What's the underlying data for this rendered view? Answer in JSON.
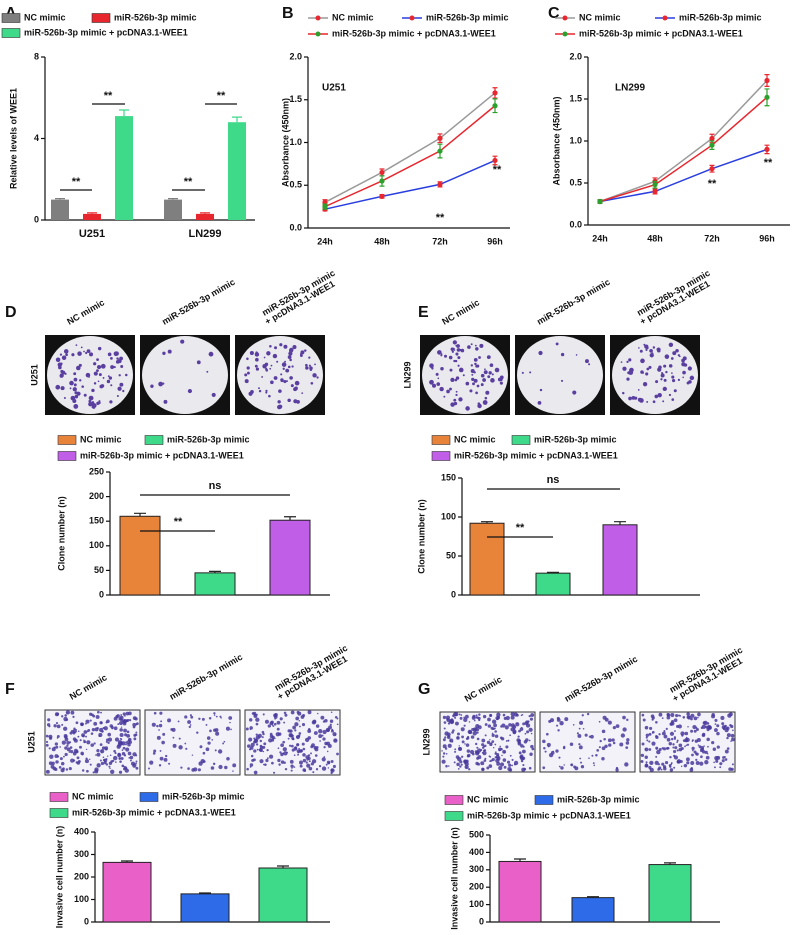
{
  "chart_data": [
    {
      "panel": "A",
      "type": "bar",
      "y_label": "Relative levels of WEE1",
      "categories": [
        "U251",
        "LN299"
      ],
      "series": [
        {
          "name": "NC mimic",
          "color": "#7f7f7f",
          "values": [
            1,
            1
          ],
          "errors": [
            0.05,
            0.05
          ]
        },
        {
          "name": "miR-526b-3p mimic",
          "color": "#e8262e",
          "values": [
            0.3,
            0.3
          ],
          "errors": [
            0.05,
            0.05
          ]
        },
        {
          "name": "miR-526b-3p mimic + pcDNA3.1-WEE1",
          "color": "#3fd98a",
          "values": [
            5.1,
            4.8
          ],
          "errors": [
            0.3,
            0.25
          ]
        }
      ],
      "ylim": [
        0,
        8
      ],
      "yticks": [
        0,
        4,
        8
      ],
      "annotations": [
        "**",
        "**",
        "**",
        "**"
      ]
    },
    {
      "panel": "B",
      "type": "line",
      "y_label": "Absorbance (450nm)",
      "label": "U251",
      "categories": [
        "24h",
        "48h",
        "72h",
        "96h"
      ],
      "series": [
        {
          "name": "NC mimic",
          "color": "#9a9a9a",
          "marker_color": "#e8262e",
          "values": [
            0.3,
            0.65,
            1.05,
            1.58
          ],
          "errors": [
            0.03,
            0.04,
            0.05,
            0.06
          ]
        },
        {
          "name": "miR-526b-3p mimic",
          "color": "#2a3fe0",
          "marker_color": "#e8262e",
          "values": [
            0.22,
            0.37,
            0.51,
            0.79
          ],
          "errors": [
            0.02,
            0.02,
            0.03,
            0.05
          ]
        },
        {
          "name": "miR-526b-3p mimic + pcDNA3.1-WEE1",
          "color": "#e8262e",
          "marker_color": "#2ca02c",
          "values": [
            0.25,
            0.55,
            0.9,
            1.43
          ],
          "errors": [
            0.03,
            0.06,
            0.08,
            0.08
          ]
        }
      ],
      "ylim": [
        0,
        2
      ],
      "yticks": [
        {
          "value": 0,
          "label": "0.0"
        },
        0.5,
        {
          "value": 1,
          "label": "1.0"
        },
        1.5,
        {
          "value": 2,
          "label": "2.0"
        }
      ],
      "annotations": [
        "**",
        "**"
      ]
    },
    {
      "panel": "C",
      "type": "line",
      "y_label": "Absorbance (450nm)",
      "label": "LN299",
      "categories": [
        "24h",
        "48h",
        "72h",
        "96h"
      ],
      "series": [
        {
          "name": "NC mimic",
          "color": "#9a9a9a",
          "marker_color": "#e8262e",
          "values": [
            0.28,
            0.52,
            1.03,
            1.72
          ],
          "errors": [
            0.02,
            0.04,
            0.05,
            0.07
          ]
        },
        {
          "name": "miR-526b-3p mimic",
          "color": "#2a3fe0",
          "marker_color": "#e8262e",
          "values": [
            0.28,
            0.4,
            0.67,
            0.9
          ],
          "errors": [
            0.02,
            0.03,
            0.04,
            0.05
          ]
        },
        {
          "name": "miR-526b-3p mimic + pcDNA3.1-WEE1",
          "color": "#e8262e",
          "marker_color": "#2ca02c",
          "values": [
            0.28,
            0.48,
            0.95,
            1.52
          ],
          "errors": [
            0.02,
            0.04,
            0.05,
            0.1
          ]
        }
      ],
      "ylim": [
        0,
        2
      ],
      "yticks": [
        {
          "value": 0,
          "label": "0.0"
        },
        0.5,
        {
          "value": 1,
          "label": "1.0"
        },
        1.5,
        {
          "value": 2,
          "label": "2.0"
        }
      ],
      "annotations": [
        "**",
        "**"
      ]
    },
    {
      "panel": "D",
      "type": "bar",
      "y_label": "Clone number (n)",
      "image_row_label": "U251",
      "image_labels": [
        [
          "NC mimic"
        ],
        [
          "miR-526b-3p mimic"
        ],
        [
          "miR-526b-3p mimic",
          "+ pcDNA3.1-WEE1"
        ]
      ],
      "series": [
        {
          "name": "NC mimic",
          "color": "#e8833a",
          "values": [
            160
          ],
          "errors": [
            6
          ]
        },
        {
          "name": "miR-526b-3p mimic",
          "color": "#3fd98a",
          "values": [
            45
          ],
          "errors": [
            3
          ]
        },
        {
          "name": "miR-526b-3p mimic + pcDNA3.1-WEE1",
          "color": "#c05ee8",
          "values": [
            152
          ],
          "errors": [
            7
          ]
        }
      ],
      "ylim": [
        0,
        250
      ],
      "yticks": [
        0,
        50,
        100,
        150,
        200,
        250
      ],
      "annotations": [
        "**",
        "ns"
      ]
    },
    {
      "panel": "E",
      "type": "bar",
      "y_label": "Clone number (n)",
      "image_row_label": "LN299",
      "image_labels": [
        [
          "NC mimic"
        ],
        [
          "miR-526b-3p mimic"
        ],
        [
          "miR-526b-3p mimic",
          "+ pcDNA3.1-WEE1"
        ]
      ],
      "series": [
        {
          "name": "NC mimic",
          "color": "#e8833a",
          "values": [
            92
          ],
          "errors": [
            2
          ]
        },
        {
          "name": "miR-526b-3p mimic",
          "color": "#3fd98a",
          "values": [
            28
          ],
          "errors": [
            1
          ]
        },
        {
          "name": "miR-526b-3p mimic + pcDNA3.1-WEE1",
          "color": "#c05ee8",
          "values": [
            90
          ],
          "errors": [
            4
          ]
        }
      ],
      "ylim": [
        0,
        150
      ],
      "yticks": [
        0,
        50,
        100,
        150
      ],
      "annotations": [
        "**",
        "ns"
      ]
    },
    {
      "panel": "F",
      "type": "bar",
      "y_label": "Invasive cell number (n)",
      "image_row_label": "U251",
      "image_labels": [
        [
          "NC mimic"
        ],
        [
          "miR-526b-3p mimic"
        ],
        [
          "miR-526b-3p mimic",
          "+ pcDNA3.1-WEE1"
        ]
      ],
      "series": [
        {
          "name": "NC mimic",
          "color": "#e860c8",
          "values": [
            265
          ],
          "errors": [
            6
          ]
        },
        {
          "name": "miR-526b-3p mimic",
          "color": "#2e6be8",
          "values": [
            125
          ],
          "errors": [
            4
          ]
        },
        {
          "name": "miR-526b-3p mimic + pcDNA3.1-WEE1",
          "color": "#3fd98a",
          "values": [
            240
          ],
          "errors": [
            9
          ]
        }
      ],
      "ylim": [
        0,
        400
      ],
      "yticks": [
        0,
        100,
        200,
        300,
        400
      ],
      "annotations": []
    },
    {
      "panel": "G",
      "type": "bar",
      "y_label": "Invasive cell number (n)",
      "image_row_label": "LN299",
      "image_labels": [
        [
          "NC mimic"
        ],
        [
          "miR-526b-3p mimic"
        ],
        [
          "miR-526b-3p mimic",
          "+ pcDNA3.1-WEE1"
        ]
      ],
      "series": [
        {
          "name": "NC mimic",
          "color": "#e860c8",
          "values": [
            348
          ],
          "errors": [
            14
          ]
        },
        {
          "name": "miR-526b-3p mimic",
          "color": "#2e6be8",
          "values": [
            140
          ],
          "errors": [
            5
          ]
        },
        {
          "name": "miR-526b-3p mimic + pcDNA3.1-WEE1",
          "color": "#3fd98a",
          "values": [
            330
          ],
          "errors": [
            10
          ]
        }
      ],
      "ylim": [
        0,
        500
      ],
      "yticks": [
        0,
        100,
        200,
        300,
        400,
        500
      ],
      "annotations": []
    }
  ]
}
